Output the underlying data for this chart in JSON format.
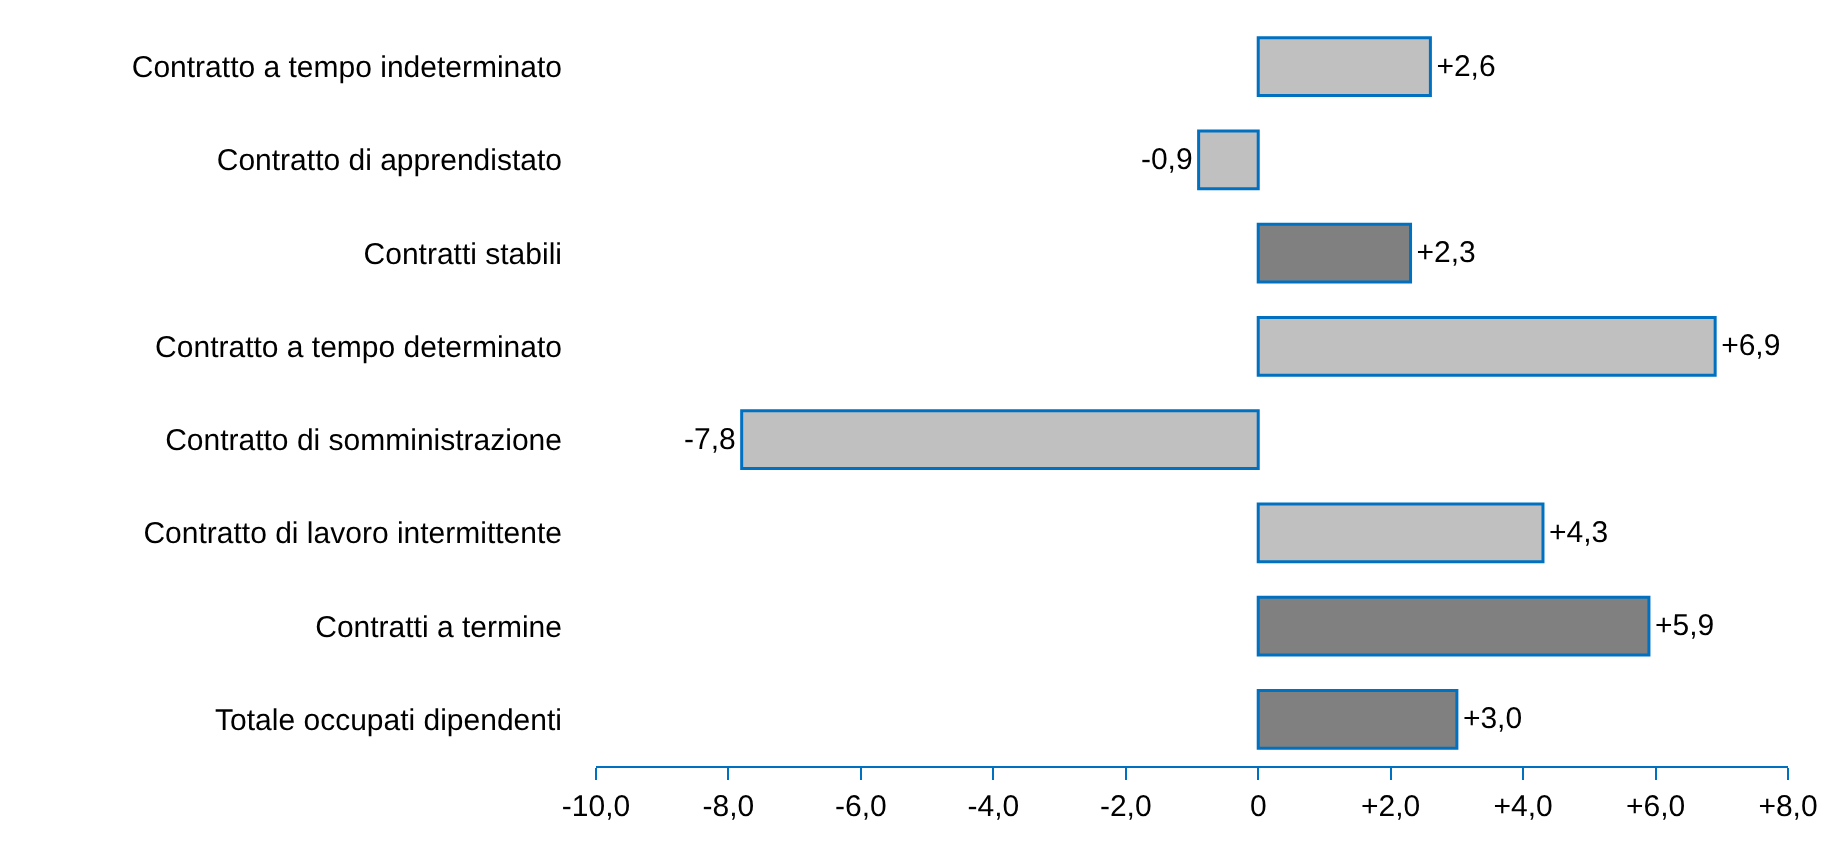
{
  "chart_data": {
    "type": "bar",
    "orientation": "horizontal",
    "categories": [
      "Contratto a tempo indeterminato",
      "Contratto di apprendistato",
      "Contratti stabili",
      "Contratto a tempo determinato",
      "Contratto di somministrazione",
      "Contratto di lavoro intermittente",
      "Contratti a termine",
      "Totale occupati dipendenti"
    ],
    "values": [
      2.6,
      -0.9,
      2.3,
      6.9,
      -7.8,
      4.3,
      5.9,
      3.0
    ],
    "value_labels": [
      "+2,6",
      "-0,9",
      "+2,3",
      "+6,9",
      "-7,8",
      "+4,3",
      "+5,9",
      "+3,0"
    ],
    "colors": [
      "#c0c0c0",
      "#c0c0c0",
      "#808080",
      "#c0c0c0",
      "#c0c0c0",
      "#c0c0c0",
      "#808080",
      "#808080"
    ],
    "xlim": [
      -10,
      8
    ],
    "xticks": [
      {
        "value": -10,
        "label": "-10,0"
      },
      {
        "value": -8,
        "label": "-8,0"
      },
      {
        "value": -6,
        "label": "-6,0"
      },
      {
        "value": -4,
        "label": "-4,0"
      },
      {
        "value": -2,
        "label": "-2,0"
      },
      0,
      {
        "value": 2,
        "label": "+2,0"
      },
      {
        "value": 4,
        "label": "+4,0"
      },
      {
        "value": 6,
        "label": "+6,0"
      },
      {
        "value": 8,
        "label": "+8,0"
      }
    ],
    "grid": false
  }
}
